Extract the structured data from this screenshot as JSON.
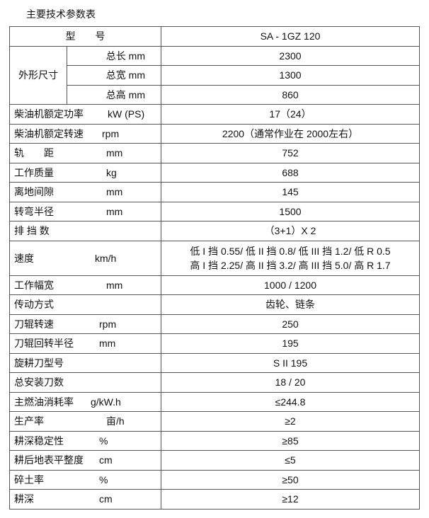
{
  "title": "主要技术参数表",
  "header": {
    "label": "型　　号",
    "value": "SA - 1GZ 120"
  },
  "dims": {
    "group": "外形尺寸",
    "rows": [
      {
        "label": "总长  mm",
        "value": "2300"
      },
      {
        "label": "总宽  mm",
        "value": "1300"
      },
      {
        "label": "总高  mm",
        "value": "860"
      }
    ]
  },
  "rows": [
    {
      "label": "柴油机额定功率",
      "unit": "kW (PS)",
      "value": "17（24）"
    },
    {
      "label": "柴油机额定转速",
      "unit": "rpm",
      "value": "2200（通常作业在 2000左右）"
    },
    {
      "label": "轨　　距",
      "unit": "mm",
      "value": "752"
    },
    {
      "label": "工作质量",
      "unit": "kg",
      "value": "688"
    },
    {
      "label": "离地间隙",
      "unit": "mm",
      "value": "145"
    },
    {
      "label": "转弯半径",
      "unit": "mm",
      "value": "1500"
    },
    {
      "label": "排 挡 数",
      "unit": "",
      "value": "（3+1）X 2"
    },
    {
      "label": "速度",
      "unit": "km/h",
      "value": "低 I 挡 0.55/ 低 II 挡 0.8/ 低 III 挡 1.2/ 低 R 0.5",
      "value2": "高 I 挡 2.25/ 高 II 挡 3.2/ 高 III 挡 5.0/ 高 R 1.7"
    },
    {
      "label": "工作幅宽",
      "unit": "mm",
      "value": "1000 / 1200"
    },
    {
      "label": "传动方式",
      "unit": "",
      "value": "齿轮、链条"
    },
    {
      "label": "刀辊转速",
      "unit": "rpm",
      "value": "250"
    },
    {
      "label": "刀辊回转半径",
      "unit": "mm",
      "value": "195"
    },
    {
      "label": "旋耕刀型号",
      "unit": "",
      "value": "S II 195"
    },
    {
      "label": "总安装刀数",
      "unit": "",
      "value": "18 / 20"
    },
    {
      "label": "主燃油消耗率",
      "unit": "g/kW.h",
      "value": "≤244.8"
    },
    {
      "label": "生产率",
      "unit": "亩/h",
      "value": "≥2"
    },
    {
      "label": "耕深稳定性",
      "unit": "%",
      "value": "≥85"
    },
    {
      "label": "耕后地表平整度",
      "unit": "cm",
      "value": "≤5"
    },
    {
      "label": "碎土率",
      "unit": "%",
      "value": "≥50"
    },
    {
      "label": "耕深",
      "unit": "cm",
      "value": "≥12"
    }
  ]
}
